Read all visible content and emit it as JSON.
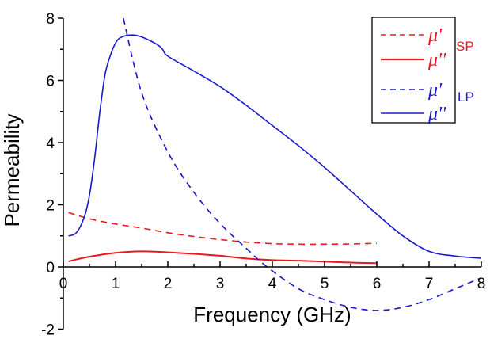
{
  "chart_data": {
    "type": "line",
    "title": "",
    "xlabel": "Frequency (GHz)",
    "ylabel": "Permeability",
    "xlim": [
      0,
      8
    ],
    "ylim": [
      -2,
      8
    ],
    "grid": false,
    "legend_position": "upper right",
    "x_ticks": [
      "0",
      "1",
      "2",
      "3",
      "4",
      "5",
      "6",
      "7",
      "8"
    ],
    "y_ticks": [
      "-2",
      "0",
      "2",
      "4",
      "6",
      "8"
    ],
    "series": [
      {
        "name": "μ'",
        "group": "SP",
        "color": "#e8191f",
        "style": "dashed",
        "x": [
          0.1,
          0.5,
          1.0,
          1.5,
          2.0,
          2.5,
          3.0,
          3.5,
          4.0,
          4.5,
          5.0,
          5.5,
          6.0
        ],
        "values": [
          1.75,
          1.55,
          1.38,
          1.25,
          1.1,
          0.98,
          0.88,
          0.8,
          0.75,
          0.73,
          0.73,
          0.74,
          0.76
        ]
      },
      {
        "name": "μ''",
        "group": "SP",
        "color": "#e8191f",
        "style": "solid",
        "x": [
          0.1,
          0.5,
          1.0,
          1.5,
          2.0,
          2.5,
          3.0,
          3.5,
          4.0,
          4.5,
          5.0,
          5.5,
          6.0
        ],
        "values": [
          0.18,
          0.33,
          0.45,
          0.5,
          0.47,
          0.42,
          0.36,
          0.27,
          0.22,
          0.2,
          0.17,
          0.14,
          0.12
        ]
      },
      {
        "name": "μ'",
        "group": "LP",
        "color": "#1a1acc",
        "style": "dashed",
        "x": [
          1.15,
          1.5,
          2.0,
          2.5,
          3.0,
          3.5,
          3.9,
          4.5,
          5.0,
          5.5,
          6.0,
          6.5,
          7.0,
          7.5,
          8.0
        ],
        "values": [
          8.0,
          5.6,
          3.7,
          2.4,
          1.4,
          0.6,
          0.0,
          -0.7,
          -1.05,
          -1.3,
          -1.4,
          -1.3,
          -1.05,
          -0.7,
          -0.35
        ]
      },
      {
        "name": "μ''",
        "group": "LP",
        "color": "#1a1acc",
        "style": "solid",
        "x": [
          0.1,
          0.25,
          0.4,
          0.5,
          0.6,
          0.7,
          0.8,
          0.9,
          1.0,
          1.1,
          1.3,
          1.5,
          1.8,
          1.9,
          2.0,
          2.5,
          3.0,
          3.5,
          4.0,
          4.5,
          5.0,
          5.5,
          6.0,
          6.5,
          7.0,
          7.5,
          8.0
        ],
        "values": [
          1.0,
          1.1,
          1.6,
          2.3,
          3.5,
          5.0,
          6.2,
          6.8,
          7.2,
          7.38,
          7.46,
          7.4,
          7.15,
          7.0,
          6.78,
          6.3,
          5.8,
          5.2,
          4.55,
          3.9,
          3.2,
          2.45,
          1.7,
          1.0,
          0.5,
          0.35,
          0.28
        ]
      }
    ],
    "legend": {
      "entries": [
        {
          "symbol": "μ'",
          "style": "dashed",
          "color": "#e8191f"
        },
        {
          "symbol": "μ''",
          "style": "solid",
          "color": "#e8191f"
        },
        {
          "symbol": "μ'",
          "style": "dashed",
          "color": "#1a1acc"
        },
        {
          "symbol": "μ''",
          "style": "solid",
          "color": "#1a1acc"
        }
      ],
      "groups": [
        {
          "label": "SP",
          "color": "#e8191f"
        },
        {
          "label": "LP",
          "color": "#1a1acc"
        }
      ]
    }
  }
}
